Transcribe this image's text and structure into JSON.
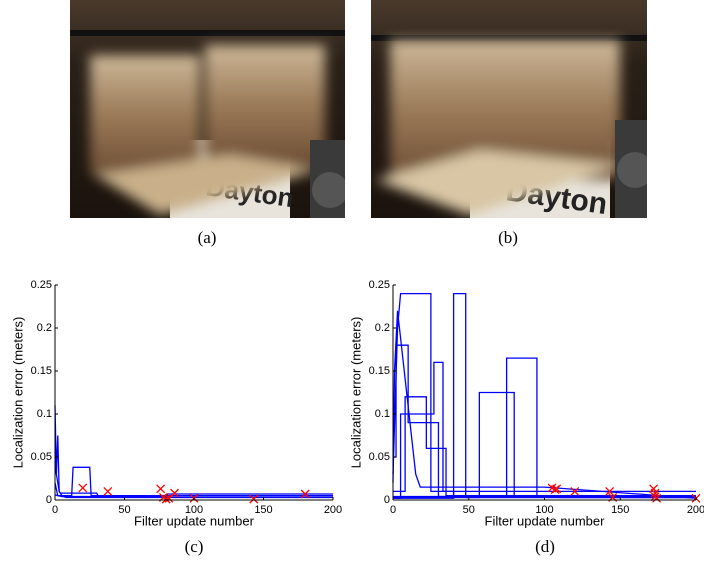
{
  "photos": [
    {
      "caption": "(a)"
    },
    {
      "caption": "(b)"
    }
  ],
  "chart_data": [
    {
      "type": "line",
      "caption": "(c)",
      "xlabel": "Filter update number",
      "ylabel": "Localization error (meters)",
      "xlim": [
        0,
        200
      ],
      "ylim": [
        0,
        0.25
      ],
      "xticks": [
        0,
        50,
        100,
        150,
        200
      ],
      "yticks": [
        0,
        0.05,
        0.1,
        0.15,
        0.2,
        0.25
      ],
      "series": [
        {
          "color": "#0000ff",
          "x": [
            0,
            1,
            2,
            3,
            5,
            8,
            200
          ],
          "values": [
            0.11,
            0.03,
            0.075,
            0.01,
            0.005,
            0.003,
            0.003
          ]
        },
        {
          "color": "#0000ff",
          "x": [
            0,
            3,
            4,
            30,
            31,
            40,
            200
          ],
          "values": [
            0.04,
            0.01,
            0.008,
            0.008,
            0.005,
            0.005,
            0.005
          ]
        },
        {
          "color": "#0000ff",
          "x": [
            0,
            2,
            12,
            13,
            25,
            26,
            200
          ],
          "values": [
            0.02,
            0.005,
            0.005,
            0.038,
            0.038,
            0.005,
            0.005
          ]
        },
        {
          "color": "#0000ff",
          "x": [
            0,
            5,
            80,
            81,
            200
          ],
          "values": [
            0.006,
            0.004,
            0.004,
            0.007,
            0.007
          ]
        },
        {
          "color": "#ff0000",
          "marker": "x",
          "x": [
            20,
            38,
            76,
            78,
            80,
            82,
            86,
            100,
            143,
            180
          ],
          "values": [
            0.014,
            0.01,
            0.013,
            0.003,
            0.001,
            0.002,
            0.008,
            0.002,
            0.001,
            0.007
          ]
        }
      ]
    },
    {
      "type": "line",
      "caption": "(d)",
      "xlabel": "Filter update number",
      "ylabel": "Localization error (meters)",
      "xlim": [
        0,
        200
      ],
      "ylim": [
        0,
        0.25
      ],
      "xticks": [
        0,
        50,
        100,
        150,
        200
      ],
      "yticks": [
        0,
        0.05,
        0.1,
        0.15,
        0.2,
        0.25
      ],
      "series": [
        {
          "color": "#0000ff",
          "x": [
            0,
            3,
            5,
            5,
            25,
            25,
            40,
            40,
            200
          ],
          "values": [
            0.03,
            0.2,
            0.24,
            0.24,
            0.24,
            0.01,
            0.01,
            0.003,
            0.003
          ]
        },
        {
          "color": "#0000ff",
          "x": [
            0,
            40,
            40,
            48,
            48,
            200
          ],
          "values": [
            0.002,
            0.002,
            0.24,
            0.24,
            0.003,
            0.003
          ]
        },
        {
          "color": "#0000ff",
          "x": [
            0,
            75,
            75,
            95,
            95,
            110,
            110,
            200
          ],
          "values": [
            0.004,
            0.004,
            0.165,
            0.165,
            0.005,
            0.005,
            0.003,
            0.003
          ]
        },
        {
          "color": "#0000ff",
          "x": [
            0,
            57,
            57,
            80,
            80,
            200
          ],
          "values": [
            0.003,
            0.003,
            0.125,
            0.125,
            0.004,
            0.004
          ]
        },
        {
          "color": "#0000ff",
          "x": [
            0,
            2,
            2,
            10,
            10,
            30,
            30,
            200
          ],
          "values": [
            0.05,
            0.05,
            0.18,
            0.18,
            0.09,
            0.09,
            0.004,
            0.004
          ]
        },
        {
          "color": "#0000ff",
          "x": [
            0,
            8,
            8,
            22,
            22,
            35,
            35,
            200
          ],
          "values": [
            0.01,
            0.01,
            0.12,
            0.12,
            0.06,
            0.06,
            0.005,
            0.005
          ]
        },
        {
          "color": "#0000ff",
          "x": [
            0,
            5,
            5,
            27,
            27,
            33,
            33,
            200
          ],
          "values": [
            0.002,
            0.002,
            0.1,
            0.1,
            0.16,
            0.16,
            0.01,
            0.01
          ]
        },
        {
          "color": "#0000ff",
          "x": [
            0,
            1,
            3,
            15,
            18,
            100,
            200
          ],
          "values": [
            0.02,
            0.15,
            0.22,
            0.03,
            0.015,
            0.015,
            0.002
          ]
        },
        {
          "color": "#ff0000",
          "marker": "x",
          "x": [
            105,
            107,
            108,
            120,
            143,
            145,
            172,
            173,
            173,
            174,
            200
          ],
          "values": [
            0.014,
            0.012,
            0.013,
            0.01,
            0.01,
            0.003,
            0.013,
            0.008,
            0.004,
            0.002,
            0.002
          ]
        }
      ]
    }
  ]
}
